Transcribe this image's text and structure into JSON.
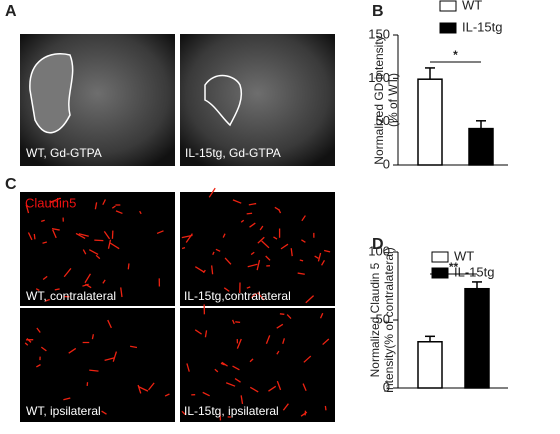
{
  "panels": {
    "a": {
      "label": "A",
      "captions": [
        "WT, Gd-GTPA",
        "IL-15tg, Gd-GTPA"
      ]
    },
    "c": {
      "label": "C",
      "stain": "Claudin5",
      "captions": [
        "WT, contralateral",
        "IL-15tg,contralateral",
        "WT, ipsilateral",
        "IL-15tg, ipsilateral"
      ]
    }
  },
  "chart_data": [
    {
      "type": "bar",
      "panel": "B",
      "ylabel": [
        "Normalized GD intensity",
        "(% of WT)"
      ],
      "series": [
        {
          "name": "WT",
          "color": "#ffffff",
          "values": [
            99
          ],
          "errors": [
            13
          ]
        },
        {
          "name": "IL-15tg",
          "color": "#000000",
          "values": [
            42
          ],
          "errors": [
            9
          ]
        }
      ],
      "significance": "*",
      "ylim": [
        0,
        150
      ],
      "yticks": [
        0,
        50,
        100,
        150
      ]
    },
    {
      "type": "bar",
      "panel": "D",
      "ylabel": [
        "Normalized Claudin 5",
        "intensity(% of contralateral)"
      ],
      "series": [
        {
          "name": "WT",
          "color": "#ffffff",
          "values": [
            34
          ],
          "errors": [
            4
          ]
        },
        {
          "name": "IL-15tg",
          "color": "#000000",
          "values": [
            73
          ],
          "errors": [
            5
          ]
        }
      ],
      "significance": "**",
      "ylim": [
        0,
        100
      ],
      "yticks": [
        0,
        50,
        100
      ]
    }
  ]
}
